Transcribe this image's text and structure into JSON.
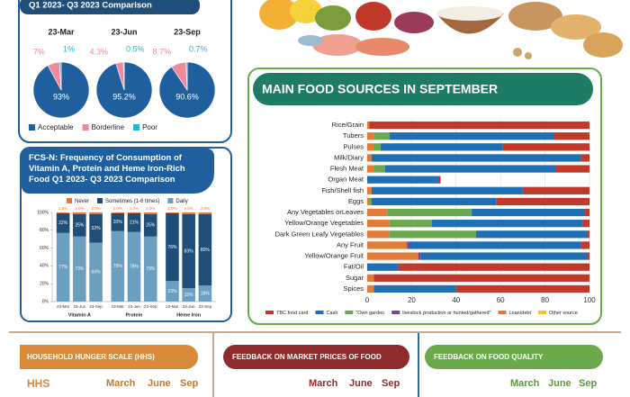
{
  "chart_data": [
    {
      "type": "pie",
      "title": "Q1 2023- Q3 2023 Comparison",
      "categories": [
        "23-Mar",
        "23-Jun",
        "23-Sep"
      ],
      "series": [
        {
          "name": "Acceptable",
          "color": "#1f5f9e",
          "values": [
            93,
            95.2,
            90.6
          ],
          "value_labels": [
            "93%",
            "95.2%",
            "90.6%"
          ]
        },
        {
          "name": "Borderline",
          "color": "#ef8a9a",
          "values": [
            7,
            4.3,
            8.7
          ],
          "value_labels": [
            "7%",
            "4.3%",
            "8.7%"
          ]
        },
        {
          "name": "Poor",
          "color": "#2bb5c8",
          "values": [
            1,
            0.5,
            0.7
          ],
          "value_labels": [
            "1%",
            "0.5%",
            "0.7%"
          ]
        }
      ],
      "legend": "bottom"
    },
    {
      "type": "bar",
      "stacked": true,
      "title": "FCS-N: Frequency of Consumption of Vitamin A, Protein and Heme Iron-Rich Food Q1 2023- Q3 2023 Comparison",
      "categories": [
        "23-Mar",
        "23-Jun",
        "23-Sep",
        "23-Mar",
        "23-Jun",
        "23-Sep",
        "23-Mar",
        "23-Jun",
        "23-Sep"
      ],
      "groups": [
        "Vitamin A",
        "Protein",
        "Heme Iron"
      ],
      "series": [
        {
          "name": "Never",
          "color": "#e8743b",
          "values": [
            1,
            2,
            2,
            1,
            1,
            2,
            1,
            2,
            2
          ],
          "value_labels": [
            "1.0%",
            "2.0%",
            "2.0%",
            "1.0%",
            "1.0%",
            "2.0%",
            "1.0%",
            "2.0%",
            "2.0%"
          ]
        },
        {
          "name": "Sometimes (1-6 times)",
          "color": "#1f4e79",
          "values": [
            22,
            25,
            32,
            20,
            21,
            25,
            76,
            83,
            80
          ],
          "value_labels": [
            "22%",
            "25%",
            "32%",
            "20%",
            "21%",
            "25%",
            "76%",
            "83%",
            "80%"
          ]
        },
        {
          "name": "Daily",
          "color": "#6a9fc0",
          "values": [
            77,
            73,
            66,
            79,
            78,
            73,
            23,
            15,
            18
          ],
          "value_labels": [
            "77%",
            "73%",
            "66%",
            "79%",
            "78%",
            "73%",
            "23%",
            "15%",
            "18%"
          ]
        }
      ],
      "ylim": [
        0,
        100
      ],
      "yticks": [
        {
          "value": 0,
          "label": "0%"
        },
        {
          "value": 20,
          "label": "20%"
        },
        {
          "value": 40,
          "label": "40%"
        },
        {
          "value": 60,
          "label": "60%"
        },
        {
          "value": 80,
          "label": "80%"
        },
        {
          "value": 100,
          "label": "100%"
        }
      ],
      "legend": "top"
    },
    {
      "type": "bar",
      "stacked": true,
      "horizontal": true,
      "title": "MAIN FOOD SOURCES IN SEPTEMBER",
      "categories": [
        "Rice/Grain",
        "Tubers",
        "Pulses",
        "Milk/Diary",
        "Flesh Meat",
        "Organ Meat",
        "Fish/Shell fish",
        "Eggs",
        "Any Vegetables orLeaves",
        "Yellow/Orange Vegetables",
        "Dark Green Leafy Vegetables",
        "Any Fruit",
        "Yellow/Orange Fruit",
        "Fat/Oil",
        "Sugar",
        "Spices"
      ],
      "series": [
        {
          "name": "TBC food card",
          "color": "#c0392b",
          "values": [
            99,
            16,
            39,
            4,
            15,
            1,
            30,
            42,
            2,
            3,
            1,
            4,
            1,
            86,
            97,
            60
          ]
        },
        {
          "name": "Cash",
          "color": "#1f6fb5",
          "values": [
            0,
            74,
            55,
            94,
            77,
            32,
            68,
            56,
            51,
            68,
            50,
            77,
            75,
            14,
            0,
            37
          ]
        },
        {
          "name": "\"Own garden",
          "color": "#6aa84f",
          "values": [
            0,
            7,
            3,
            0,
            5,
            0,
            0,
            1,
            38,
            19,
            39,
            0,
            0,
            0,
            0,
            0
          ]
        },
        {
          "name": "livestock production or hunted/gathered\"",
          "color": "#7b3fa0",
          "values": [
            0,
            0,
            0,
            0,
            0,
            0,
            0,
            0,
            0,
            0,
            0,
            1,
            1,
            0,
            0,
            0
          ]
        },
        {
          "name": "Loan/debt",
          "color": "#e07b39",
          "values": [
            1,
            3,
            3,
            2,
            3,
            0,
            2,
            1,
            9,
            10,
            10,
            18,
            23,
            0,
            3,
            3
          ]
        },
        {
          "name": "Other source",
          "color": "#f1c232",
          "values": [
            0,
            0,
            0,
            0,
            0,
            0,
            0,
            0,
            0,
            0,
            0,
            0,
            0,
            0,
            0,
            0
          ]
        }
      ],
      "xlim": [
        0,
        100
      ],
      "xticks": [
        0,
        20,
        40,
        60,
        80,
        100
      ],
      "grid": true,
      "legend": "bottom"
    }
  ],
  "sections": [
    {
      "title": "HOUSEHOLD HUNGER SCALE (HHS)",
      "label": "HHS",
      "columns": [
        "March",
        "June",
        "Sep"
      ]
    },
    {
      "title": "FEEDBACK ON MARKET PRICES OF FOOD",
      "columns": [
        "March",
        "June",
        "Sep"
      ]
    },
    {
      "title": "FEEDBACK ON FOOD QUALITY",
      "columns": [
        "March",
        "June",
        "Sep"
      ]
    }
  ]
}
